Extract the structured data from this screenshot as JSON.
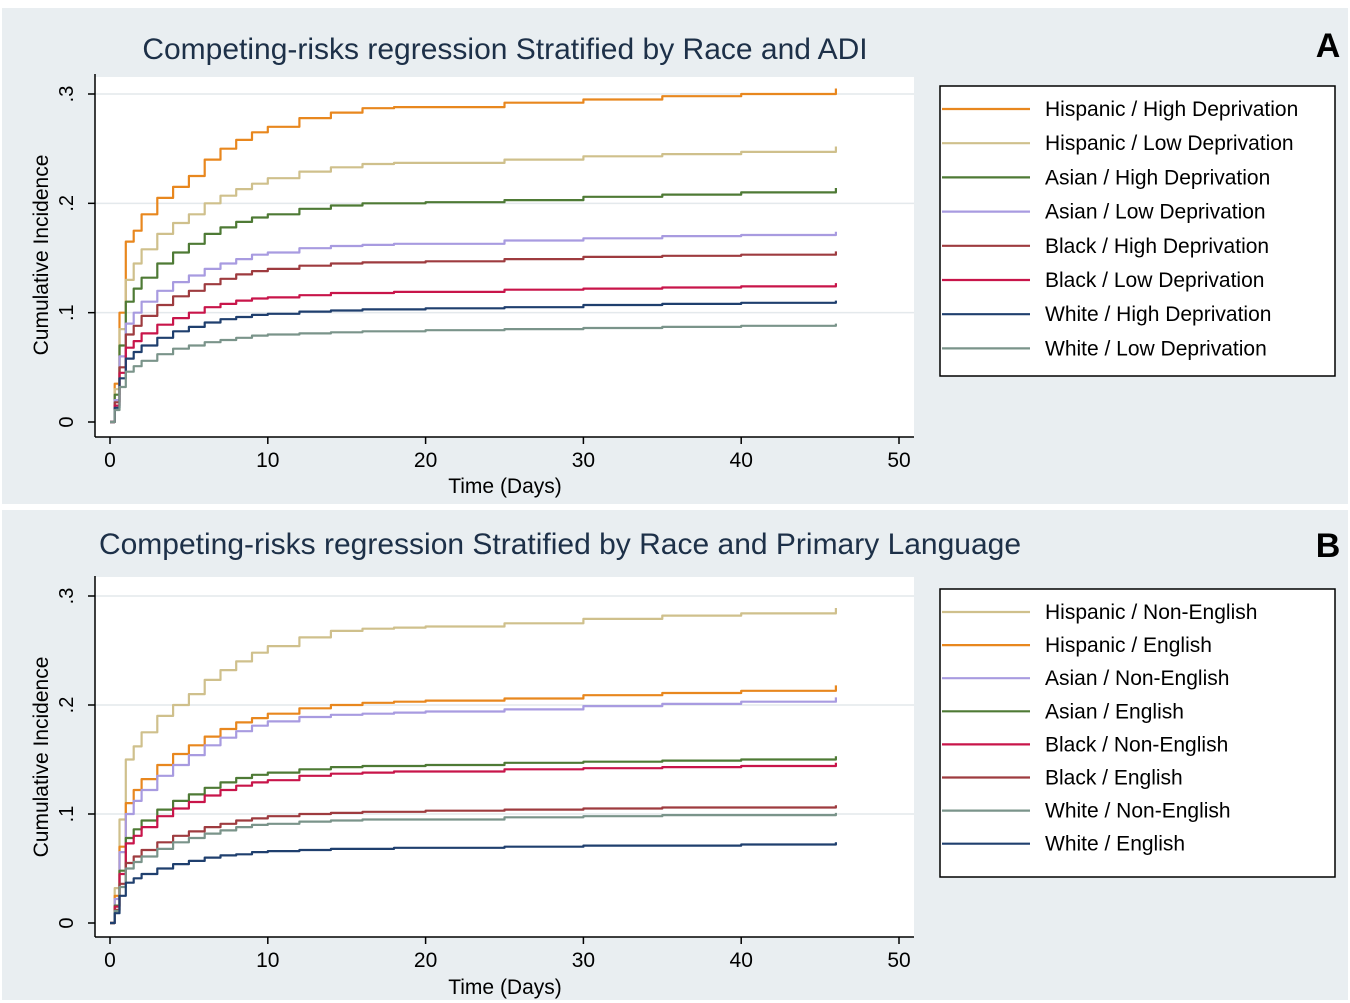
{
  "panels": [
    {
      "letter": "A",
      "title": "Competing-risks regression Stratified by Race and ADI",
      "xlabel": "Time (Days)",
      "ylabel": "Cumulative Incidence"
    },
    {
      "letter": "B",
      "title": "Competing-risks regression Stratified by Race and Primary Language",
      "xlabel": "Time (Days)",
      "ylabel": "Cumulative Incidence"
    }
  ],
  "chart_data": [
    {
      "type": "line",
      "title": "Competing-risks regression Stratified by Race and ADI",
      "xlabel": "Time (Days)",
      "ylabel": "Cumulative Incidence",
      "xlim": [
        0,
        50
      ],
      "ylim": [
        0,
        0.3
      ],
      "x_ticks": [
        0,
        10,
        20,
        30,
        40,
        50
      ],
      "x_tick_labels": [
        "0",
        "10",
        "20",
        "30",
        "40",
        "50"
      ],
      "y_ticks": [
        0,
        0.1,
        0.2,
        0.3
      ],
      "y_tick_labels": [
        "0",
        ".1",
        ".2",
        ".3"
      ],
      "grid": true,
      "legend_position": "right",
      "x": [
        0,
        0.3,
        0.6,
        1,
        1.5,
        2,
        3,
        4,
        5,
        6,
        7,
        8,
        9,
        10,
        12,
        14,
        16,
        18,
        20,
        25,
        30,
        35,
        40,
        46
      ],
      "series": [
        {
          "name": "Hispanic / High Deprivation",
          "color": "#e8871e",
          "values": [
            0,
            0.035,
            0.1,
            0.165,
            0.175,
            0.19,
            0.205,
            0.215,
            0.225,
            0.24,
            0.25,
            0.258,
            0.265,
            0.27,
            0.278,
            0.283,
            0.287,
            0.288,
            0.288,
            0.292,
            0.295,
            0.298,
            0.3,
            0.305
          ]
        },
        {
          "name": "Hispanic / Low Deprivation",
          "color": "#cfc08c",
          "values": [
            0,
            0.03,
            0.085,
            0.13,
            0.145,
            0.158,
            0.172,
            0.182,
            0.19,
            0.2,
            0.207,
            0.213,
            0.218,
            0.223,
            0.229,
            0.233,
            0.236,
            0.237,
            0.237,
            0.24,
            0.243,
            0.245,
            0.247,
            0.252
          ]
        },
        {
          "name": "Asian / High Deprivation",
          "color": "#4e7a35",
          "values": [
            0,
            0.025,
            0.07,
            0.11,
            0.122,
            0.132,
            0.145,
            0.155,
            0.163,
            0.172,
            0.178,
            0.183,
            0.187,
            0.19,
            0.195,
            0.198,
            0.2,
            0.2,
            0.201,
            0.203,
            0.206,
            0.208,
            0.21,
            0.214
          ]
        },
        {
          "name": "Asian / Low Deprivation",
          "color": "#a89be0",
          "values": [
            0,
            0.02,
            0.06,
            0.09,
            0.1,
            0.11,
            0.12,
            0.128,
            0.134,
            0.14,
            0.145,
            0.149,
            0.153,
            0.155,
            0.159,
            0.161,
            0.162,
            0.163,
            0.163,
            0.166,
            0.168,
            0.17,
            0.171,
            0.174
          ]
        },
        {
          "name": "Black / High Deprivation",
          "color": "#9e3b3f",
          "values": [
            0,
            0.018,
            0.05,
            0.08,
            0.088,
            0.097,
            0.107,
            0.115,
            0.12,
            0.126,
            0.131,
            0.135,
            0.138,
            0.14,
            0.143,
            0.145,
            0.146,
            0.146,
            0.147,
            0.149,
            0.151,
            0.152,
            0.153,
            0.156
          ]
        },
        {
          "name": "Black / Low Deprivation",
          "color": "#c8154a",
          "values": [
            0,
            0.015,
            0.045,
            0.068,
            0.074,
            0.081,
            0.089,
            0.095,
            0.1,
            0.105,
            0.108,
            0.111,
            0.113,
            0.114,
            0.116,
            0.118,
            0.118,
            0.119,
            0.119,
            0.121,
            0.122,
            0.123,
            0.124,
            0.127
          ]
        },
        {
          "name": "White / High Deprivation",
          "color": "#1f3f6e",
          "values": [
            0,
            0.013,
            0.04,
            0.058,
            0.064,
            0.07,
            0.077,
            0.083,
            0.087,
            0.091,
            0.094,
            0.096,
            0.098,
            0.099,
            0.101,
            0.102,
            0.103,
            0.103,
            0.104,
            0.105,
            0.107,
            0.108,
            0.109,
            0.111
          ]
        },
        {
          "name": "White / Low Deprivation",
          "color": "#7a948a",
          "values": [
            0,
            0.011,
            0.032,
            0.046,
            0.051,
            0.056,
            0.062,
            0.067,
            0.07,
            0.073,
            0.075,
            0.077,
            0.079,
            0.08,
            0.081,
            0.082,
            0.083,
            0.083,
            0.084,
            0.085,
            0.086,
            0.087,
            0.088,
            0.09
          ]
        }
      ]
    },
    {
      "type": "line",
      "title": "Competing-risks regression Stratified by Race and Primary Language",
      "xlabel": "Time (Days)",
      "ylabel": "Cumulative Incidence",
      "xlim": [
        0,
        50
      ],
      "ylim": [
        0,
        0.3
      ],
      "x_ticks": [
        0,
        10,
        20,
        30,
        40,
        50
      ],
      "x_tick_labels": [
        "0",
        "10",
        "20",
        "30",
        "40",
        "50"
      ],
      "y_ticks": [
        0,
        0.1,
        0.2,
        0.3
      ],
      "y_tick_labels": [
        "0",
        ".1",
        ".2",
        ".3"
      ],
      "grid": true,
      "legend_position": "right",
      "x": [
        0,
        0.3,
        0.6,
        1,
        1.5,
        2,
        3,
        4,
        5,
        6,
        7,
        8,
        9,
        10,
        12,
        14,
        16,
        18,
        20,
        25,
        30,
        35,
        40,
        46
      ],
      "series": [
        {
          "name": "Hispanic / Non-English",
          "color": "#cfc08c",
          "values": [
            0,
            0.032,
            0.095,
            0.15,
            0.162,
            0.175,
            0.19,
            0.2,
            0.21,
            0.223,
            0.232,
            0.24,
            0.248,
            0.254,
            0.262,
            0.268,
            0.27,
            0.271,
            0.272,
            0.275,
            0.279,
            0.282,
            0.284,
            0.289
          ]
        },
        {
          "name": "Hispanic / English",
          "color": "#e8871e",
          "values": [
            0,
            0.025,
            0.07,
            0.11,
            0.122,
            0.132,
            0.145,
            0.155,
            0.163,
            0.171,
            0.178,
            0.184,
            0.188,
            0.192,
            0.197,
            0.2,
            0.202,
            0.203,
            0.204,
            0.206,
            0.209,
            0.211,
            0.213,
            0.218
          ]
        },
        {
          "name": "Asian / Non-English",
          "color": "#a89be0",
          "values": [
            0,
            0.022,
            0.065,
            0.1,
            0.112,
            0.122,
            0.135,
            0.145,
            0.154,
            0.163,
            0.17,
            0.176,
            0.181,
            0.185,
            0.189,
            0.191,
            0.192,
            0.193,
            0.194,
            0.196,
            0.199,
            0.201,
            0.203,
            0.207
          ]
        },
        {
          "name": "Asian / English",
          "color": "#4e7a35",
          "values": [
            0,
            0.016,
            0.048,
            0.078,
            0.086,
            0.094,
            0.104,
            0.112,
            0.118,
            0.124,
            0.129,
            0.133,
            0.136,
            0.138,
            0.141,
            0.143,
            0.144,
            0.144,
            0.145,
            0.147,
            0.148,
            0.149,
            0.15,
            0.153
          ]
        },
        {
          "name": "Black / Non-English",
          "color": "#c8154a",
          "values": [
            0,
            0.015,
            0.045,
            0.073,
            0.08,
            0.088,
            0.098,
            0.105,
            0.111,
            0.117,
            0.122,
            0.126,
            0.129,
            0.131,
            0.135,
            0.137,
            0.138,
            0.139,
            0.139,
            0.141,
            0.142,
            0.143,
            0.144,
            0.147
          ]
        },
        {
          "name": "Black / English",
          "color": "#9e3b3f",
          "values": [
            0,
            0.012,
            0.036,
            0.055,
            0.061,
            0.067,
            0.074,
            0.08,
            0.084,
            0.088,
            0.091,
            0.094,
            0.096,
            0.098,
            0.1,
            0.101,
            0.102,
            0.102,
            0.103,
            0.104,
            0.105,
            0.106,
            0.106,
            0.108
          ]
        },
        {
          "name": "White / Non-English",
          "color": "#7a948a",
          "values": [
            0,
            0.011,
            0.033,
            0.05,
            0.056,
            0.061,
            0.068,
            0.074,
            0.078,
            0.082,
            0.085,
            0.088,
            0.09,
            0.091,
            0.093,
            0.094,
            0.095,
            0.095,
            0.095,
            0.097,
            0.098,
            0.099,
            0.099,
            0.101
          ]
        },
        {
          "name": "White / English",
          "color": "#1f3f6e",
          "values": [
            0,
            0.009,
            0.025,
            0.037,
            0.041,
            0.045,
            0.05,
            0.054,
            0.057,
            0.06,
            0.062,
            0.063,
            0.065,
            0.066,
            0.067,
            0.068,
            0.068,
            0.069,
            0.069,
            0.07,
            0.071,
            0.071,
            0.072,
            0.074
          ]
        }
      ]
    }
  ]
}
